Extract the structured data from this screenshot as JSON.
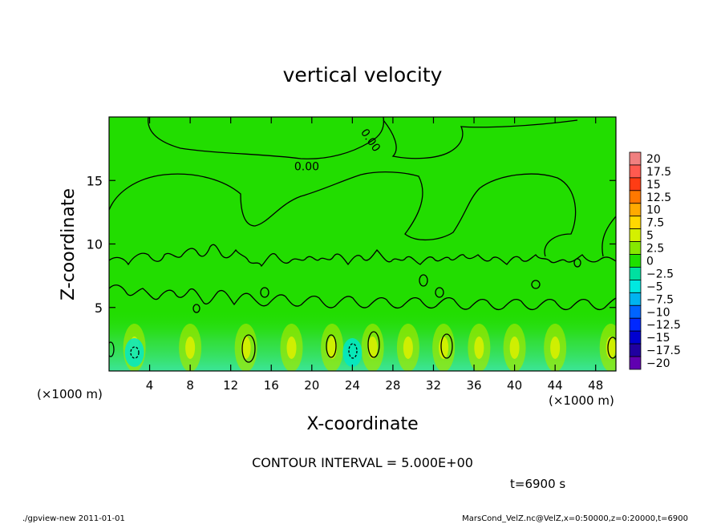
{
  "chart_data": {
    "type": "heatmap",
    "title": "vertical velocity",
    "xlabel": "X-coordinate",
    "ylabel": "Z-coordinate",
    "x_unit_label": "(×1000 m)",
    "y_unit_label": "(×1000 m)",
    "xlim": [
      0,
      50
    ],
    "ylim": [
      0,
      20
    ],
    "x_ticks": [
      4,
      8,
      12,
      16,
      20,
      24,
      28,
      32,
      36,
      40,
      44,
      48
    ],
    "y_ticks": [
      5,
      10,
      15
    ],
    "contour_labels": [
      {
        "text": "0.00",
        "x": 19.5,
        "z": 15.8
      },
      {
        "text": "0.00",
        "x": 25.5,
        "z": 18.0
      }
    ],
    "updraft_cores_x": [
      2.5,
      8,
      13.5,
      18,
      22,
      26,
      29.5,
      33,
      36.5,
      40,
      44,
      49.5
    ],
    "downdraft_cores_x": [
      2.5,
      24
    ],
    "colorbar": {
      "levels": [
        "20",
        "17.5",
        "15",
        "12.5",
        "10",
        "7.5",
        "5",
        "2.5",
        "0",
        "−2.5",
        "−5",
        "−7.5",
        "−10",
        "−12.5",
        "−15",
        "−17.5",
        "−20"
      ],
      "colors": [
        "#f08080",
        "#ff5a50",
        "#ff3c14",
        "#ff7800",
        "#ffaa00",
        "#ffd800",
        "#d4f000",
        "#86e800",
        "#1ee000",
        "#00e0a0",
        "#00e8e0",
        "#00b4f0",
        "#0064ff",
        "#0028ff",
        "#0000d0",
        "#2000a0",
        "#6000b0"
      ]
    },
    "contour_interval_text": "CONTOUR INTERVAL = 5.000E+00",
    "time_text": "t=6900 s"
  },
  "footer": {
    "left": "./gpview-new   2011-01-01",
    "right": "MarsCond_VelZ.nc@VelZ,x=0:50000,z=0:20000,t=6900"
  }
}
